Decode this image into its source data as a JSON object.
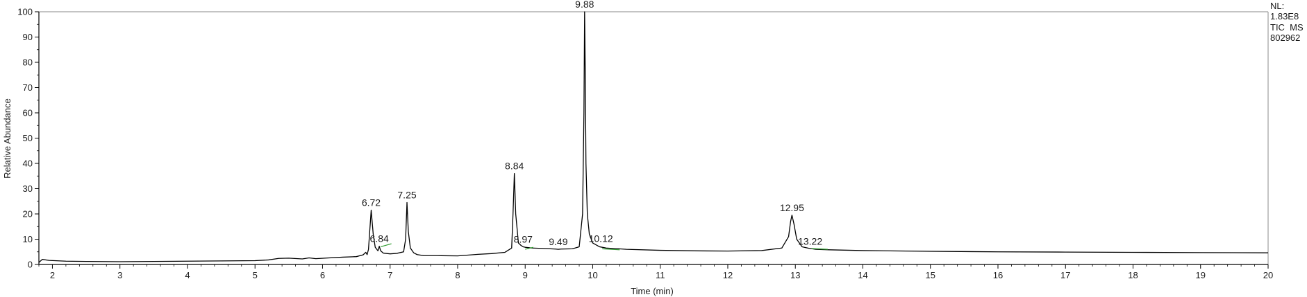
{
  "chart_data": {
    "type": "line",
    "xlabel": "Time (min)",
    "ylabel": "Relative Abundance",
    "xlim": [
      1.8,
      20
    ],
    "ylim": [
      0,
      100
    ],
    "x_ticks": [
      2,
      3,
      4,
      5,
      6,
      7,
      8,
      9,
      10,
      11,
      12,
      13,
      14,
      15,
      16,
      17,
      18,
      19,
      20
    ],
    "y_ticks": [
      0,
      10,
      20,
      30,
      40,
      50,
      60,
      70,
      80,
      90,
      100
    ],
    "grid": false,
    "colors": {
      "trace": "#000000",
      "baseline_marker": "#2e9b2e",
      "axis": "#000000",
      "plot_border": "#8a8a8a"
    },
    "info": {
      "nl_label": "NL:",
      "nl_value": "1.83E8",
      "scan_filter": "TIC  MS",
      "file_name": "802962"
    },
    "peaks": [
      {
        "label": "6.72",
        "x": 6.72,
        "y": 21.5
      },
      {
        "label": "6.84",
        "x": 6.84,
        "y": 7.2
      },
      {
        "label": "7.25",
        "x": 7.25,
        "y": 24.5
      },
      {
        "label": "8.84",
        "x": 8.84,
        "y": 36
      },
      {
        "label": "8.97",
        "x": 8.97,
        "y": 7.0
      },
      {
        "label": "9.49",
        "x": 9.49,
        "y": 6.0
      },
      {
        "label": "9.88",
        "x": 9.88,
        "y": 100
      },
      {
        "label": "10.12",
        "x": 10.12,
        "y": 7.3
      },
      {
        "label": "12.95",
        "x": 12.95,
        "y": 19.5
      },
      {
        "label": "13.22",
        "x": 13.22,
        "y": 6.2
      }
    ],
    "baseline_markers": [
      {
        "x": [
          6.86,
          7.02
        ],
        "y": [
          7.0,
          8.2
        ]
      },
      {
        "x": [
          9.0,
          9.12
        ],
        "y": [
          6.0,
          6.8
        ]
      },
      {
        "x": [
          10.14,
          10.4
        ],
        "y": [
          6.2,
          5.8
        ]
      },
      {
        "x": [
          13.24,
          13.48
        ],
        "y": [
          6.3,
          6.0
        ]
      }
    ],
    "series": [
      {
        "x": [
          1.8,
          1.85,
          1.95,
          2.2,
          2.5,
          3.0,
          3.5,
          4.0,
          4.5,
          5.0,
          5.2,
          5.35,
          5.5,
          5.7,
          5.8,
          5.9,
          6.1,
          6.3,
          6.5,
          6.6,
          6.64,
          6.66,
          6.68,
          6.72,
          6.75,
          6.78,
          6.82,
          6.84,
          6.86,
          6.9,
          7.0,
          7.1,
          7.2,
          7.23,
          7.25,
          7.27,
          7.3,
          7.35,
          7.4,
          7.5,
          7.7,
          8.0,
          8.3,
          8.5,
          8.7,
          8.8,
          8.82,
          8.84,
          8.86,
          8.9,
          8.94,
          8.97,
          9.0,
          9.1,
          9.3,
          9.45,
          9.49,
          9.53,
          9.7,
          9.8,
          9.85,
          9.87,
          9.88,
          9.89,
          9.9,
          9.92,
          9.95,
          10.0,
          10.1,
          10.2,
          10.5,
          11.0,
          11.5,
          12.0,
          12.5,
          12.8,
          12.9,
          12.93,
          12.95,
          12.98,
          13.02,
          13.1,
          13.2,
          13.3,
          13.5,
          14.0,
          15.0,
          16.0,
          17.0,
          18.0,
          19.0,
          20.0
        ],
        "y": [
          0.8,
          2.0,
          1.6,
          1.3,
          1.2,
          1.1,
          1.2,
          1.3,
          1.4,
          1.5,
          1.8,
          2.4,
          2.5,
          2.2,
          2.6,
          2.3,
          2.6,
          2.9,
          3.1,
          3.8,
          4.8,
          3.9,
          6.0,
          21.5,
          12.0,
          6.8,
          5.4,
          7.2,
          5.4,
          4.5,
          4.2,
          4.4,
          5.0,
          10.0,
          24.5,
          13.0,
          6.5,
          4.6,
          3.9,
          3.5,
          3.5,
          3.4,
          4.0,
          4.3,
          4.8,
          6.5,
          20.0,
          36.0,
          20.0,
          8.5,
          7.5,
          7.0,
          6.8,
          6.5,
          6.3,
          6.1,
          6.0,
          6.1,
          6.2,
          7.0,
          20.0,
          60.0,
          100.0,
          75.0,
          40.0,
          20.0,
          12.0,
          8.5,
          7.0,
          6.5,
          6.0,
          5.6,
          5.4,
          5.3,
          5.5,
          6.5,
          11.0,
          17.0,
          19.5,
          16.0,
          10.0,
          7.0,
          6.4,
          6.0,
          5.8,
          5.5,
          5.2,
          5.0,
          4.9,
          4.8,
          4.7,
          4.6
        ]
      }
    ]
  }
}
